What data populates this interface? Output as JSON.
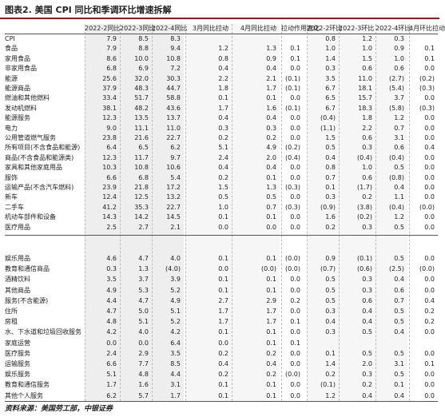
{
  "header": {
    "title": "图表2. 美国 CPI 同比和季调环比增速拆解"
  },
  "table": {
    "columns": [
      "",
      "2022-2同比",
      "2022-3同比",
      "2022-4同比",
      "3月同比拉动",
      "4月同比拉动",
      "拉动作用变化",
      "2022-2环比",
      "2022-3环比",
      "2022-4环比",
      "4月环比拉动"
    ],
    "rows": [
      [
        "CPI",
        "7.9",
        "8.5",
        "8.3",
        null,
        null,
        null,
        "0.8",
        "1.2",
        "0.3",
        null
      ],
      [
        "食品",
        "7.9",
        "8.8",
        "9.4",
        "1.2",
        "1.3",
        "0.1",
        "1.0",
        "1.0",
        "0.9",
        "0.1"
      ],
      [
        "家用食品",
        "8.6",
        "10.0",
        "10.8",
        "0.8",
        "0.9",
        "0.1",
        "1.4",
        "1.5",
        "1.0",
        "0.1"
      ],
      [
        "非家用食品",
        "6.8",
        "6.9",
        "7.2",
        "0.4",
        "0.4",
        "0.0",
        "0.3",
        "0.6",
        "0.6",
        "0.0"
      ],
      [
        "能源",
        "25.6",
        "32.0",
        "30.3",
        "2.2",
        "2.1",
        "(0.1)",
        "3.5",
        "11.0",
        "(2.7)",
        "(0.2)"
      ],
      [
        "能源商品",
        "37.9",
        "48.3",
        "44.7",
        "1.8",
        "1.7",
        "(0.1)",
        "6.7",
        "18.1",
        "(5.4)",
        "(0.3)"
      ],
      [
        "燃油和其他燃料",
        "33.4",
        "51.7",
        "58.8",
        "0.1",
        "0.1",
        "0.0",
        "6.5",
        "15.7",
        "3.7",
        "0.0"
      ],
      [
        "发动机燃料",
        "38.1",
        "48.2",
        "43.6",
        "1.7",
        "1.6",
        "(0.1)",
        "6.7",
        "18.3",
        "(5.8)",
        "(0.3)"
      ],
      [
        "能源服务",
        "12.3",
        "13.5",
        "13.7",
        "0.4",
        "0.4",
        "0.0",
        "(0.4)",
        "1.8",
        "1.2",
        "0.0"
      ],
      [
        "电力",
        "9.0",
        "11.1",
        "11.0",
        "0.3",
        "0.3",
        "0.0",
        "(1.1)",
        "2.2",
        "0.7",
        "0.0"
      ],
      [
        "公用管道燃气服务",
        "23.8",
        "21.6",
        "22.7",
        "0.2",
        "0.2",
        "0.0",
        "1.5",
        "0.6",
        "3.1",
        "0.0"
      ],
      [
        "所有项目(不含食品和能源)",
        "6.4",
        "6.5",
        "6.2",
        "5.1",
        "4.9",
        "(0.2)",
        "0.5",
        "0.3",
        "0.6",
        "0.4"
      ],
      [
        "商品(不含食品和能源类)",
        "12.3",
        "11.7",
        "9.7",
        "2.4",
        "2.0",
        "(0.4)",
        "0.4",
        "(0.4)",
        "(0.4)",
        "0.0"
      ],
      [
        "家具和其他家庭用品",
        "10.3",
        "10.8",
        "10.6",
        "0.4",
        "0.4",
        "0.0",
        "0.8",
        "1.0",
        "0.5",
        "0.0"
      ],
      [
        "服饰",
        "6.6",
        "6.8",
        "5.4",
        "0.2",
        "0.1",
        "0.0",
        "0.7",
        "0.6",
        "(0.8)",
        "0.0"
      ],
      [
        "运输产品(不含汽车燃料)",
        "23.9",
        "21.8",
        "17.2",
        "1.5",
        "1.3",
        "(0.3)",
        "0.1",
        "(1.7)",
        "0.4",
        "0.0"
      ],
      [
        "新车",
        "12.4",
        "12.5",
        "13.2",
        "0.5",
        "0.5",
        "0.0",
        "0.3",
        "0.2",
        "1.1",
        "0.0"
      ],
      [
        "二手车",
        "41.2",
        "35.3",
        "22.7",
        "1.0",
        "0.7",
        "(0.3)",
        "(0.9)",
        "(3.8)",
        "(0.4)",
        "(0.0)"
      ],
      [
        "机动车部件和设备",
        "14.3",
        "14.2",
        "14.5",
        "0.1",
        "0.1",
        "0.0",
        "1.6",
        "(0.2)",
        "1.2",
        "0.0"
      ],
      [
        "医疗用品",
        "2.5",
        "2.7",
        "2.1",
        "0.0",
        "0.0",
        "0.0",
        "0.2",
        "0.3",
        "0.5",
        "0.0"
      ]
    ],
    "rows_lower": [
      [
        "娱乐用品",
        "4.6",
        "4.7",
        "4.0",
        "0.1",
        "0.1",
        "(0.0)",
        "0.9",
        "(0.1)",
        "0.5",
        "0.0"
      ],
      [
        "教育和通信商品",
        "0.3",
        "1.3",
        "(4.0)",
        "0.0",
        "(0.0)",
        "(0.0)",
        "(0.7)",
        "(0.6)",
        "(2.5)",
        "(0.0)"
      ],
      [
        "酒精饮料",
        "3.5",
        "3.7",
        "3.9",
        "0.1",
        "0.1",
        "0.0",
        "0.5",
        "0.3",
        "0.4",
        "0.0"
      ],
      [
        "其他商品",
        "4.9",
        "5.3",
        "5.2",
        "0.1",
        "0.1",
        "0.0",
        "0.5",
        "0.3",
        "0.6",
        "0.0"
      ],
      [
        "服务(不含能源)",
        "4.4",
        "4.7",
        "4.9",
        "2.7",
        "2.9",
        "0.2",
        "0.5",
        "0.6",
        "0.7",
        "0.4"
      ],
      [
        "住所",
        "4.7",
        "5.0",
        "5.1",
        "1.7",
        "1.7",
        "0.0",
        "0.3",
        "0.4",
        "0.5",
        "0.2"
      ],
      [
        "房租",
        "4.8",
        "5.1",
        "5.2",
        "1.7",
        "1.7",
        "0.1",
        "0.4",
        "0.4",
        "0.5",
        "0.2"
      ],
      [
        "水、下水道和垃圾回收服务",
        "4.2",
        "4.0",
        "4.2",
        "0.1",
        "0.1",
        "0.0",
        "0.3",
        "0.5",
        "0.4",
        "0.0"
      ],
      [
        "家庭运营",
        "0.0",
        "0.0",
        "6.4",
        "0.0",
        "0.1",
        "0.1",
        null,
        null,
        null,
        null
      ],
      [
        "医疗服务",
        "2.4",
        "2.9",
        "3.5",
        "0.2",
        "0.2",
        "0.0",
        "0.1",
        "0.5",
        "0.5",
        "0.0"
      ],
      [
        "运输服务",
        "6.6",
        "7.7",
        "8.5",
        "0.4",
        "0.4",
        "0.0",
        "1.4",
        "2.0",
        "3.1",
        "0.1"
      ],
      [
        "娱乐服务",
        "5.1",
        "4.8",
        "4.4",
        "0.2",
        "0.2",
        "(0.0)",
        "0.2",
        "0.3",
        "0.5",
        "0.0"
      ],
      [
        "教育和通信服务",
        "1.7",
        "1.6",
        "3.1",
        "0.1",
        "0.1",
        "0.0",
        "(0.1)",
        "0.2",
        "0.1",
        "0.0"
      ],
      [
        "其他个人服务",
        "6.2",
        "5.7",
        "1.7",
        "0.1",
        "0.1",
        "0.0",
        "1.2",
        "0.4",
        "0.4",
        "0.0"
      ]
    ]
  },
  "footer": {
    "source": "资料来源：美国劳工部，中银证券"
  }
}
